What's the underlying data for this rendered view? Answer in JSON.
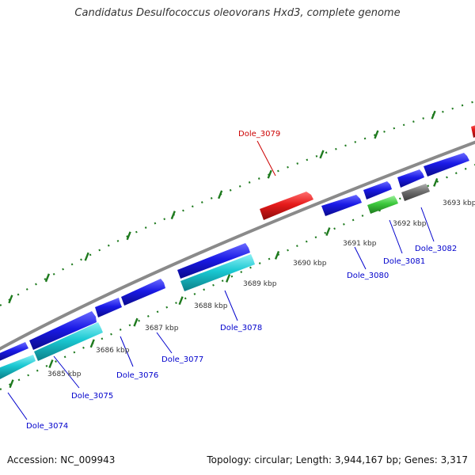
{
  "title": "Candidatus Desulfococcus oleovorans Hxd3, complete genome",
  "footer": {
    "accession": "Accession: NC_009943",
    "summary": "Topology: circular; Length: 3,944,167 bp; Genes: 3,317"
  },
  "colors": {
    "backbone": "#8a8a8a",
    "tick": "#1e7a1e",
    "forward_gene": "#1a1ae6",
    "reverse_gene": "#1ac8d2",
    "highlight_gene": "#e61a1a",
    "green_gene": "#3cc83c",
    "pseudo_gene": "#6e6e6e",
    "label": "#0000cc",
    "highlight_label": "#cc0000"
  },
  "kbp_ticks": [
    "3685 kbp",
    "3686 kbp",
    "3687 kbp",
    "3688 kbp",
    "3689 kbp",
    "3690 kbp",
    "3691 kbp",
    "3692 kbp",
    "3693 kbp"
  ],
  "genes": [
    {
      "label": "Dole_3074",
      "color": "reverse_gene"
    },
    {
      "label": "Dole_3075",
      "color": "reverse_gene"
    },
    {
      "label": "Dole_3076",
      "color": "forward_gene"
    },
    {
      "label": "Dole_3077",
      "color": "forward_gene"
    },
    {
      "label": "Dole_3078",
      "color": "reverse_gene"
    },
    {
      "label": "Dole_3079",
      "color": "highlight_gene"
    },
    {
      "label": "Dole_3080",
      "color": "forward_gene"
    },
    {
      "label": "Dole_3081",
      "color": "green_gene"
    },
    {
      "label": "Dole_3082",
      "color": "forward_gene"
    }
  ]
}
